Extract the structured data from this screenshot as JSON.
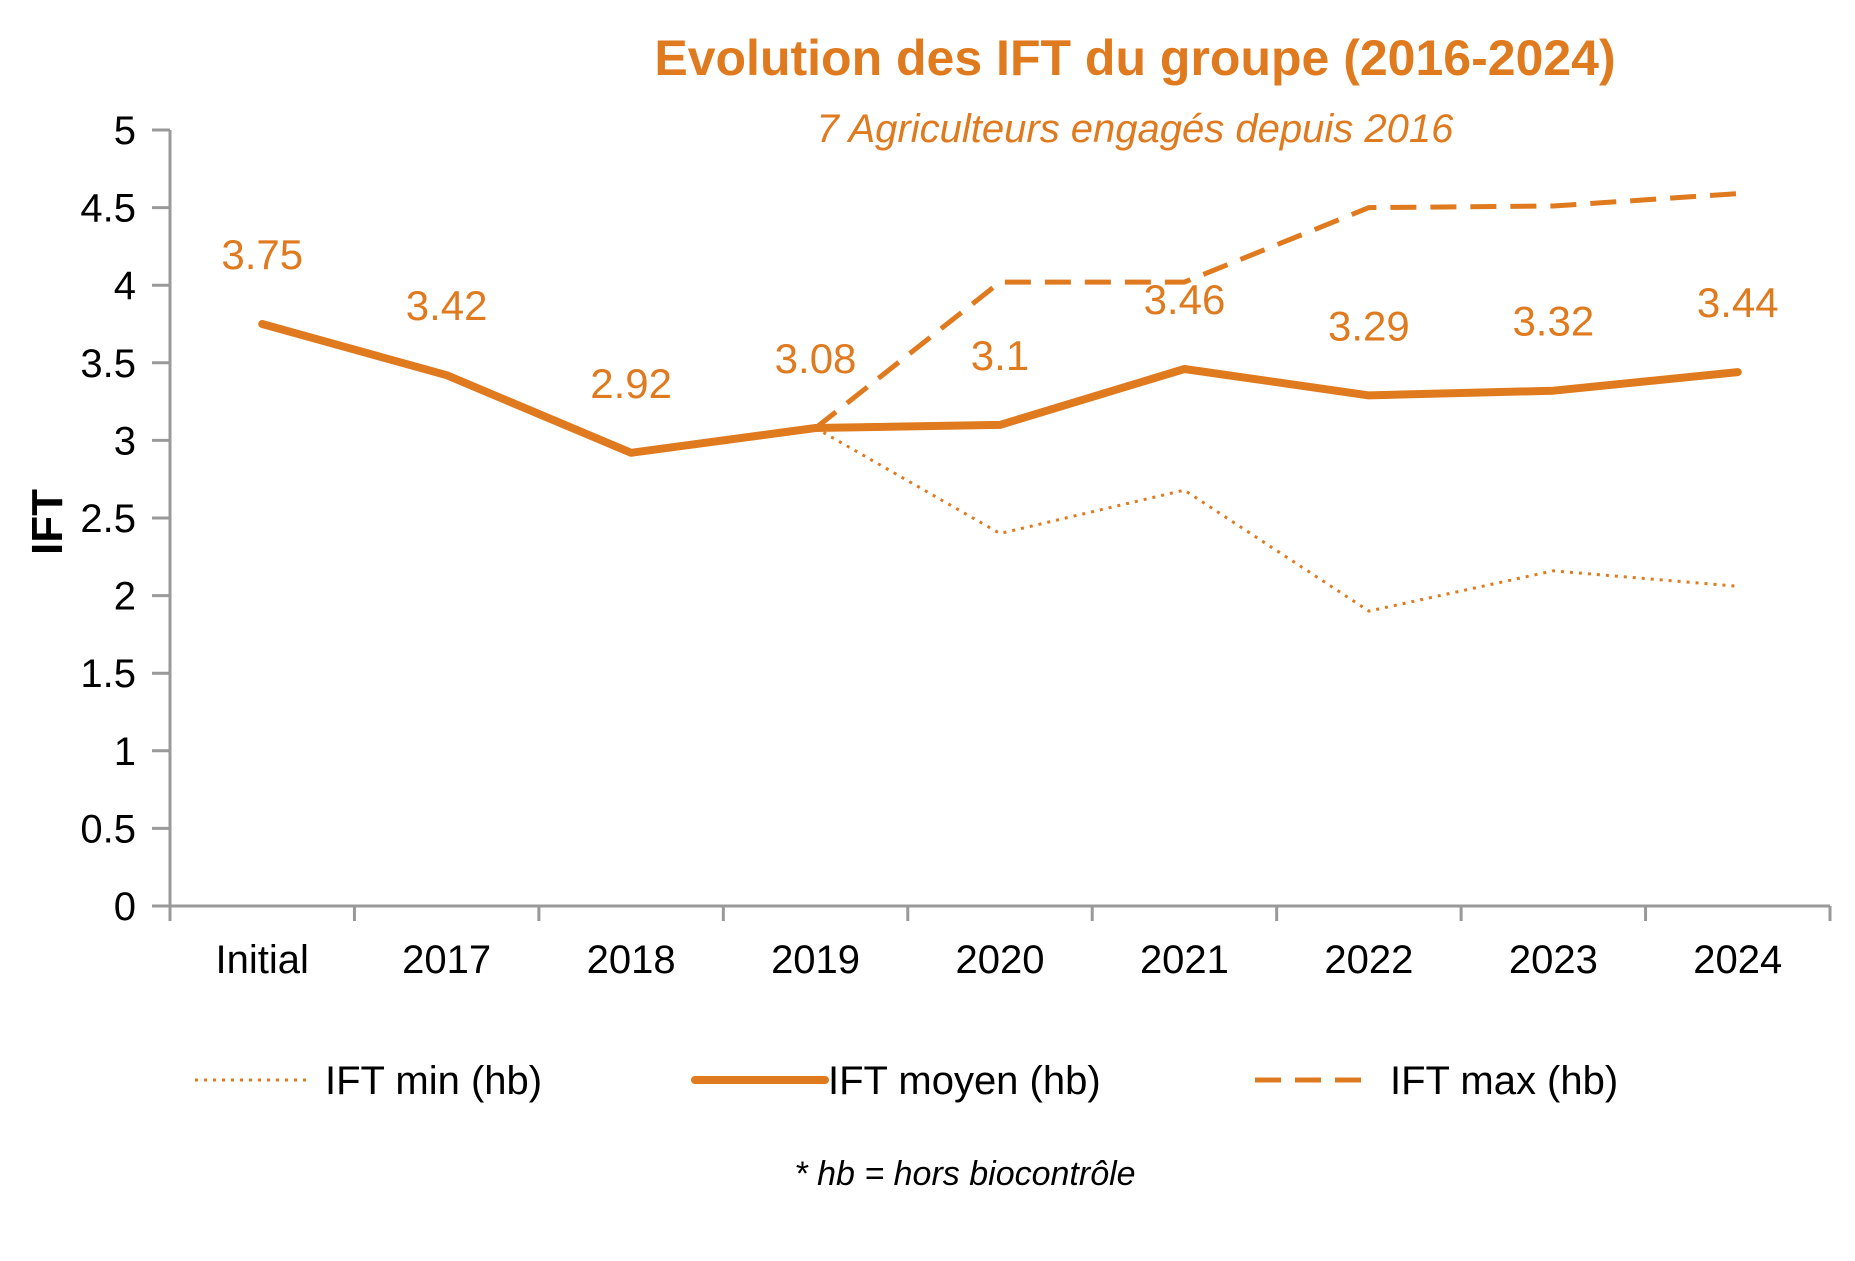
{
  "colors": {
    "accent": "#E07A1F",
    "axis": "#999999",
    "text": "#000000"
  },
  "chart_data": {
    "type": "line",
    "title": "Evolution des IFT du groupe (2016-2024)",
    "subtitle": "7 Agriculteurs engagés depuis 2016",
    "ylabel": "IFT",
    "xlabel": "",
    "ylim": [
      0,
      5
    ],
    "yticks": [
      "0",
      "0.5",
      "1",
      "1.5",
      "2",
      "2.5",
      "3",
      "3.5",
      "4",
      "4.5",
      "5"
    ],
    "categories": [
      "Initial",
      "2017",
      "2018",
      "2019",
      "2020",
      "2021",
      "2022",
      "2023",
      "2024"
    ],
    "grid": false,
    "legend_position": "bottom",
    "series": [
      {
        "name": "IFT min (hb)",
        "style": "dotted",
        "values": [
          null,
          null,
          null,
          3.08,
          2.4,
          2.68,
          1.9,
          2.16,
          2.06
        ]
      },
      {
        "name": "IFT moyen (hb)",
        "style": "solid",
        "data_labels": true,
        "values": [
          3.75,
          3.42,
          2.92,
          3.08,
          3.1,
          3.46,
          3.29,
          3.32,
          3.44
        ]
      },
      {
        "name": "IFT max (hb)",
        "style": "dashed",
        "values": [
          null,
          null,
          null,
          3.08,
          4.02,
          4.02,
          4.5,
          4.51,
          4.59
        ]
      }
    ],
    "annotations": [
      "* hb = hors biocontrôle"
    ]
  }
}
